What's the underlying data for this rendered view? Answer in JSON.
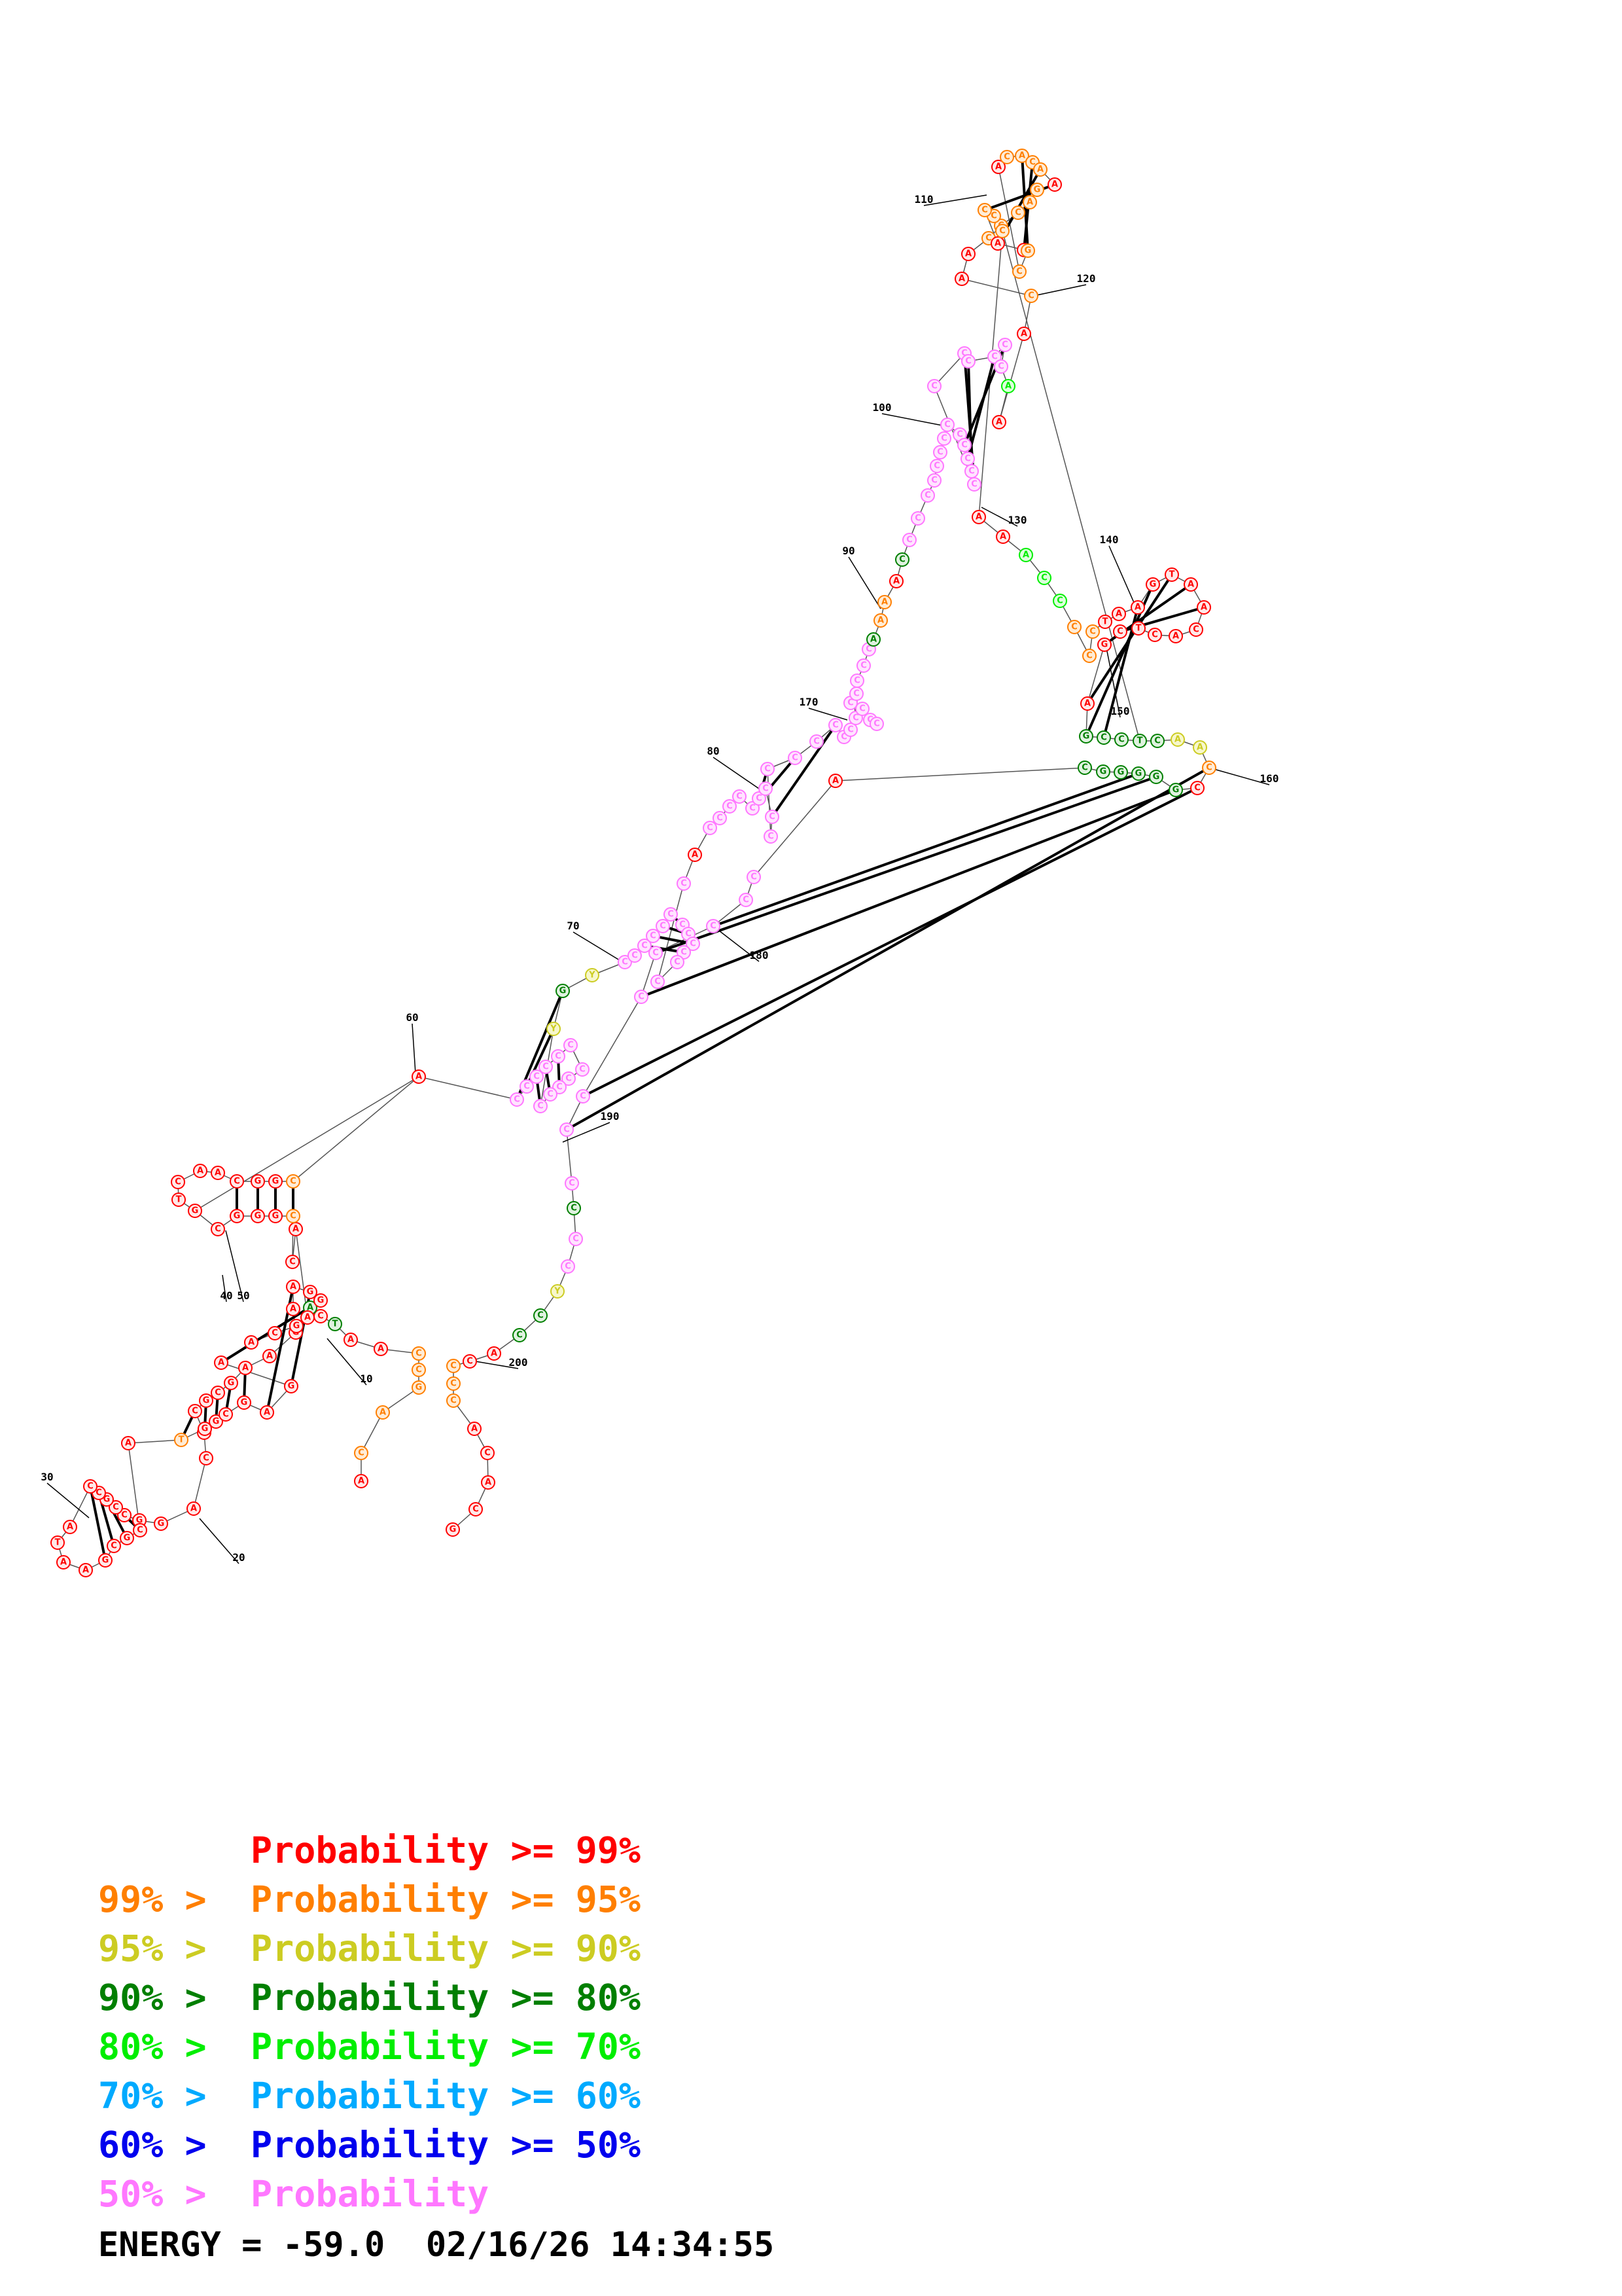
{
  "probability_colors": {
    "p99": "#ff0000",
    "p95": "#ff7f00",
    "p90": "#cccc22",
    "p80": "#007f00",
    "p70": "#00ee00",
    "p60": "#00aaff",
    "p50": "#0000ee",
    "plow": "#ff77ff"
  },
  "legend": {
    "rows": [
      {
        "prefix": "",
        "text": "Probability >= 99%",
        "color": "#ff0000"
      },
      {
        "prefix": "99% > ",
        "text": "Probability >= 95%",
        "color": "#ff7f00"
      },
      {
        "prefix": "95% > ",
        "text": "Probability >= 90%",
        "color": "#cccc22"
      },
      {
        "prefix": "90% > ",
        "text": "Probability >= 80%",
        "color": "#007f00"
      },
      {
        "prefix": "80% > ",
        "text": "Probability >= 70%",
        "color": "#00ee00"
      },
      {
        "prefix": "70% > ",
        "text": "Probability >= 60%",
        "color": "#00aaff"
      },
      {
        "prefix": "60% > ",
        "text": "Probability >= 50%",
        "color": "#0000ee"
      },
      {
        "prefix": "50% > ",
        "text": "Probability",
        "color": "#ff77ff"
      }
    ]
  },
  "energy": {
    "label": "ENERGY = -59.0",
    "timestamp": "02/16/26 14:34:55"
  },
  "position_labels": [
    "10",
    "20",
    "30",
    "40",
    "50",
    "60",
    "70",
    "80",
    "90",
    "100",
    "110",
    "120",
    "130",
    "140",
    "150",
    "160",
    "170",
    "180",
    "190",
    "200"
  ]
}
